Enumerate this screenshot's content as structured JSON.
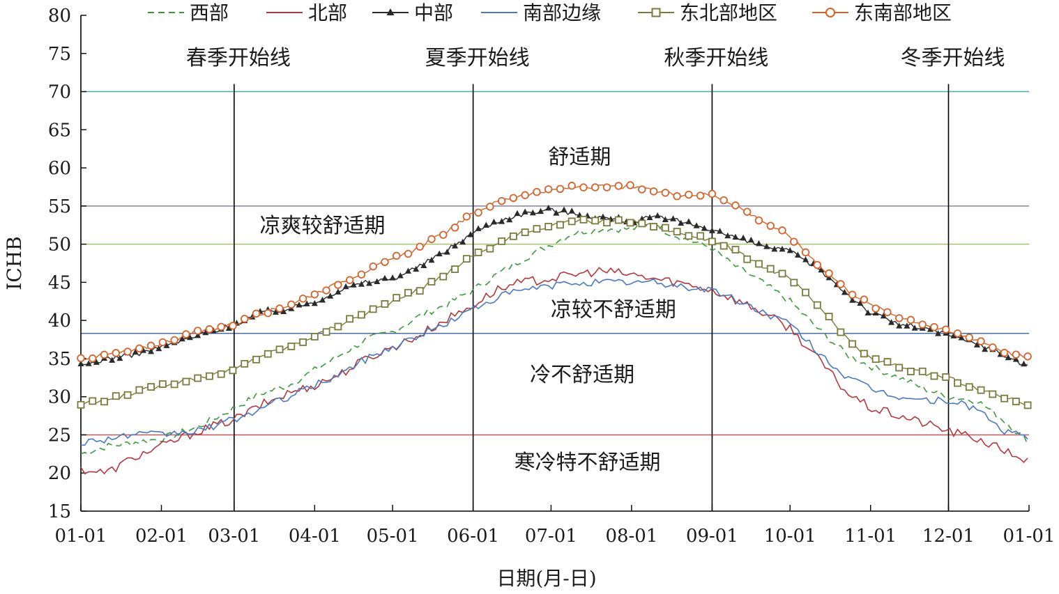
{
  "chart_data": {
    "type": "line",
    "title": "",
    "xlabel": "日期(月-日)",
    "ylabel": "ICHB",
    "ylim": [
      15,
      80
    ],
    "yticks": [
      15,
      20,
      25,
      30,
      35,
      40,
      45,
      50,
      55,
      60,
      65,
      70,
      75,
      80
    ],
    "xlim_days": [
      0,
      365
    ],
    "xticks": [
      {
        "label": "01-01",
        "day": 0
      },
      {
        "label": "02-01",
        "day": 31
      },
      {
        "label": "03-01",
        "day": 59
      },
      {
        "label": "04-01",
        "day": 90
      },
      {
        "label": "05-01",
        "day": 120
      },
      {
        "label": "06-01",
        "day": 151
      },
      {
        "label": "07-01",
        "day": 181
      },
      {
        "label": "08-01",
        "day": 212
      },
      {
        "label": "09-01",
        "day": 243
      },
      {
        "label": "10-01",
        "day": 273
      },
      {
        "label": "11-01",
        "day": 304
      },
      {
        "label": "12-01",
        "day": 334
      },
      {
        "label": "01-01",
        "day": 365
      }
    ],
    "legend_position": "top",
    "grid": false,
    "series": [
      {
        "name": "西部",
        "color": "#3a9a3a",
        "style": "dashed",
        "marker": "none",
        "x": [
          0,
          10,
          20,
          31,
          45,
          59,
          70,
          80,
          90,
          100,
          110,
          120,
          130,
          140,
          151,
          160,
          170,
          181,
          190,
          200,
          212,
          220,
          230,
          243,
          250,
          260,
          273,
          285,
          295,
          304,
          315,
          325,
          334,
          345,
          355,
          365
        ],
        "y": [
          22.5,
          23.5,
          24.0,
          24.5,
          26.0,
          28.5,
          30.5,
          31.5,
          33.5,
          35.5,
          37.5,
          38.5,
          40.5,
          42.0,
          44.0,
          46.0,
          48.0,
          50.0,
          51.5,
          52.0,
          52.0,
          52.5,
          51.0,
          49.5,
          47.5,
          45.5,
          42.5,
          38.5,
          35.5,
          34.0,
          32.5,
          31.0,
          30.0,
          29.5,
          27.0,
          24.0
        ]
      },
      {
        "name": "北部",
        "color": "#b2383d",
        "style": "solid",
        "marker": "none",
        "x": [
          0,
          10,
          20,
          31,
          45,
          59,
          70,
          80,
          90,
          100,
          110,
          120,
          130,
          140,
          151,
          160,
          170,
          181,
          190,
          200,
          212,
          220,
          230,
          243,
          250,
          260,
          273,
          285,
          295,
          304,
          315,
          325,
          334,
          345,
          355,
          365
        ],
        "y": [
          20.5,
          20.0,
          22.0,
          23.5,
          25.5,
          27.0,
          29.0,
          30.5,
          31.5,
          33.0,
          35.0,
          36.5,
          38.0,
          40.0,
          42.0,
          44.0,
          45.0,
          45.5,
          46.0,
          46.5,
          46.0,
          45.5,
          45.0,
          44.0,
          43.0,
          41.5,
          39.0,
          34.5,
          30.5,
          28.5,
          27.5,
          26.5,
          25.5,
          24.5,
          23.0,
          21.5
        ]
      },
      {
        "name": "中部",
        "color": "#2a2a2a",
        "style": "solid",
        "marker": "triangle",
        "x": [
          0,
          10,
          20,
          31,
          45,
          59,
          70,
          80,
          90,
          100,
          110,
          120,
          130,
          140,
          151,
          160,
          170,
          181,
          190,
          200,
          212,
          220,
          230,
          243,
          250,
          260,
          273,
          285,
          295,
          304,
          315,
          325,
          334,
          345,
          355,
          365
        ],
        "y": [
          34.0,
          35.0,
          35.5,
          36.5,
          38.0,
          39.5,
          41.0,
          41.5,
          42.5,
          44.0,
          45.0,
          45.5,
          47.0,
          49.0,
          51.5,
          53.0,
          54.0,
          54.5,
          54.0,
          53.5,
          53.0,
          53.5,
          53.0,
          52.0,
          51.0,
          50.0,
          49.0,
          46.5,
          43.5,
          41.0,
          39.5,
          39.0,
          38.0,
          37.0,
          35.5,
          34.0
        ]
      },
      {
        "name": "南部边缘",
        "color": "#4a78c0",
        "style": "solid",
        "marker": "none",
        "x": [
          0,
          10,
          20,
          31,
          45,
          59,
          70,
          80,
          90,
          100,
          110,
          120,
          130,
          140,
          151,
          160,
          170,
          181,
          190,
          200,
          212,
          220,
          230,
          243,
          250,
          260,
          273,
          285,
          295,
          304,
          315,
          325,
          334,
          345,
          355,
          365
        ],
        "y": [
          24.0,
          24.5,
          25.0,
          25.0,
          25.5,
          27.0,
          28.5,
          30.0,
          31.5,
          33.0,
          35.0,
          36.5,
          38.0,
          39.5,
          41.5,
          43.0,
          44.0,
          44.5,
          45.0,
          45.0,
          45.0,
          45.0,
          44.5,
          44.0,
          43.0,
          41.5,
          39.5,
          35.5,
          32.5,
          31.0,
          30.0,
          29.5,
          29.5,
          28.5,
          25.5,
          24.5
        ]
      },
      {
        "name": "东北部地区",
        "color": "#7a7a3a",
        "style": "solid",
        "marker": "square",
        "x": [
          0,
          10,
          20,
          31,
          45,
          59,
          70,
          80,
          90,
          100,
          110,
          120,
          130,
          140,
          151,
          160,
          170,
          181,
          190,
          200,
          212,
          220,
          230,
          243,
          250,
          260,
          273,
          285,
          295,
          304,
          315,
          325,
          334,
          345,
          355,
          365
        ],
        "y": [
          29.0,
          29.5,
          30.5,
          31.5,
          32.5,
          33.5,
          35.5,
          36.5,
          38.0,
          39.5,
          41.0,
          42.5,
          44.0,
          46.0,
          48.5,
          50.0,
          51.5,
          52.5,
          53.0,
          53.0,
          53.0,
          52.5,
          51.5,
          50.5,
          49.5,
          47.5,
          45.5,
          41.5,
          37.5,
          35.0,
          34.0,
          33.0,
          32.5,
          31.0,
          30.0,
          29.0
        ]
      },
      {
        "name": "东南部地区",
        "color": "#d4622a",
        "style": "solid",
        "marker": "circle",
        "x": [
          0,
          10,
          20,
          31,
          45,
          59,
          70,
          80,
          90,
          100,
          110,
          120,
          130,
          140,
          151,
          160,
          170,
          181,
          190,
          200,
          212,
          220,
          230,
          243,
          250,
          260,
          273,
          285,
          295,
          304,
          315,
          325,
          334,
          345,
          355,
          365
        ],
        "y": [
          35.0,
          35.5,
          36.0,
          37.0,
          38.5,
          39.5,
          41.0,
          42.0,
          43.5,
          45.0,
          46.5,
          48.0,
          49.5,
          51.5,
          54.0,
          55.5,
          56.5,
          57.0,
          57.5,
          57.5,
          57.5,
          57.0,
          56.5,
          56.5,
          55.5,
          53.5,
          51.0,
          47.0,
          44.0,
          42.0,
          40.5,
          39.5,
          38.5,
          37.5,
          36.0,
          35.0
        ]
      }
    ],
    "reference_lines": [
      {
        "y": 70,
        "color": "#4aa8b0"
      },
      {
        "y": 55,
        "color": "#8a80a8"
      },
      {
        "y": 50,
        "color": "#a8c070"
      },
      {
        "y": 38.3,
        "color": "#4a6ea8"
      },
      {
        "y": 25,
        "color": "#c0585a"
      }
    ],
    "season_lines": [
      {
        "label": "春季开始线",
        "day": 59
      },
      {
        "label": "夏季开始线",
        "day": 151
      },
      {
        "label": "秋季开始线",
        "day": 243
      },
      {
        "label": "冬季开始线",
        "day": 334
      }
    ],
    "zone_labels": [
      {
        "text": "舒适期",
        "day": 192,
        "y": 61.5
      },
      {
        "text": "凉爽较舒适期",
        "day": 93,
        "y": 52.5
      },
      {
        "text": "凉较不舒适期",
        "day": 205,
        "y": 41.5
      },
      {
        "text": "冷不舒适期",
        "day": 193,
        "y": 33.0
      },
      {
        "text": "寒冷特不舒适期",
        "day": 195,
        "y": 21.5
      }
    ]
  }
}
